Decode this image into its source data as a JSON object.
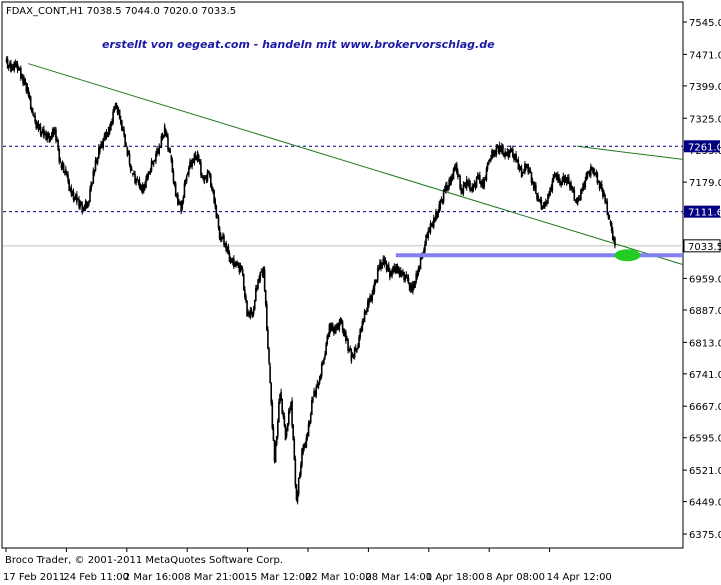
{
  "header": {
    "symbol_line": "FDAX_CONT,H1  7038.5 7044.0 7020.0 7033.5",
    "watermark": "erstellt von oegeat.com - handeln mit www.brokervorschlag.de"
  },
  "footer": {
    "copyright": "Broco Trader, © 2001-2011 MetaQuotes Software Corp."
  },
  "colors": {
    "candle": "#000000",
    "trendline": "#1e7a1e",
    "support_line": "#8080f0",
    "support_marker": "#22cc22",
    "level_dashed": "#000080",
    "price_line": "#c0c0c0"
  },
  "chart_data": {
    "type": "line",
    "title": "FDAX_CONT,H1",
    "timeframe": "H1",
    "ohlc_last": {
      "open": 7038.5,
      "high": 7044.0,
      "low": 7020.0,
      "close": 7033.5
    },
    "ylim": [
      6338,
      7580
    ],
    "y_ticks": [
      "7545.0",
      "7471.0",
      "7399.0",
      "7325.0",
      "7253.0",
      "7179.0",
      "7107.0",
      "7033.0",
      "6959.0",
      "6887.0",
      "6813.0",
      "6741.0",
      "6667.0",
      "6595.0",
      "6521.0",
      "6449.0",
      "6375.0"
    ],
    "x_ticks": [
      "17 Feb 2011",
      "24 Feb 11:00",
      "2 Mar 16:00",
      "8 Mar 21:00",
      "15 Mar 12:00",
      "22 Mar 10:00",
      "28 Mar 14:00",
      "1 Apr 18:00",
      "8 Apr 08:00",
      "14 Apr 12:00"
    ],
    "x_tick_index": [
      0,
      11,
      22,
      33,
      44,
      55,
      66,
      77,
      88,
      99
    ],
    "index_range": [
      0,
      115
    ],
    "price_labels": [
      {
        "label": "7261.0",
        "value": 7261.0,
        "style": "dashed"
      },
      {
        "label": "7111.6",
        "value": 7111.6,
        "style": "dashed"
      },
      {
        "label": "7033.5",
        "value": 7033.5,
        "style": "current"
      }
    ],
    "series": [
      {
        "values": [
          7455,
          7440,
          7450,
          7420,
          7390,
          7330,
          7300,
          7290,
          7280,
          7300,
          7220,
          7200,
          7150,
          7140,
          7120,
          7130,
          7200,
          7250,
          7280,
          7300,
          7360,
          7320,
          7260,
          7200,
          7180,
          7160,
          7200,
          7230,
          7260,
          7300,
          7240,
          7150,
          7120,
          7200,
          7230,
          7240,
          7180,
          7200,
          7140,
          7060,
          7040,
          7000,
          6990,
          6980,
          6880,
          6880,
          6960,
          6980,
          6760,
          6540,
          6700,
          6600,
          6680,
          6450,
          6560,
          6600,
          6690,
          6720,
          6780,
          6850,
          6840,
          6860,
          6820,
          6780,
          6800,
          6860,
          6900,
          6930,
          6985,
          7000,
          6970,
          6985,
          6970,
          6960,
          6930,
          6970,
          7020,
          7070,
          7090,
          7120,
          7160,
          7180,
          7220,
          7160,
          7180,
          7160,
          7190,
          7170,
          7230,
          7250,
          7260,
          7240,
          7250,
          7230,
          7200,
          7220,
          7180,
          7140,
          7120,
          7150,
          7200,
          7180,
          7190,
          7170,
          7130,
          7160,
          7200,
          7210,
          7180,
          7150,
          7090,
          7033.5
        ]
      }
    ],
    "trendlines": [
      {
        "from": [
          4,
          7450
        ],
        "to": [
          165,
          6830
        ]
      },
      {
        "from": [
          104,
          7261
        ],
        "to": [
          165,
          7166
        ]
      }
    ],
    "support_line": {
      "value": 7012,
      "from_index": 71
    },
    "grid": false
  }
}
